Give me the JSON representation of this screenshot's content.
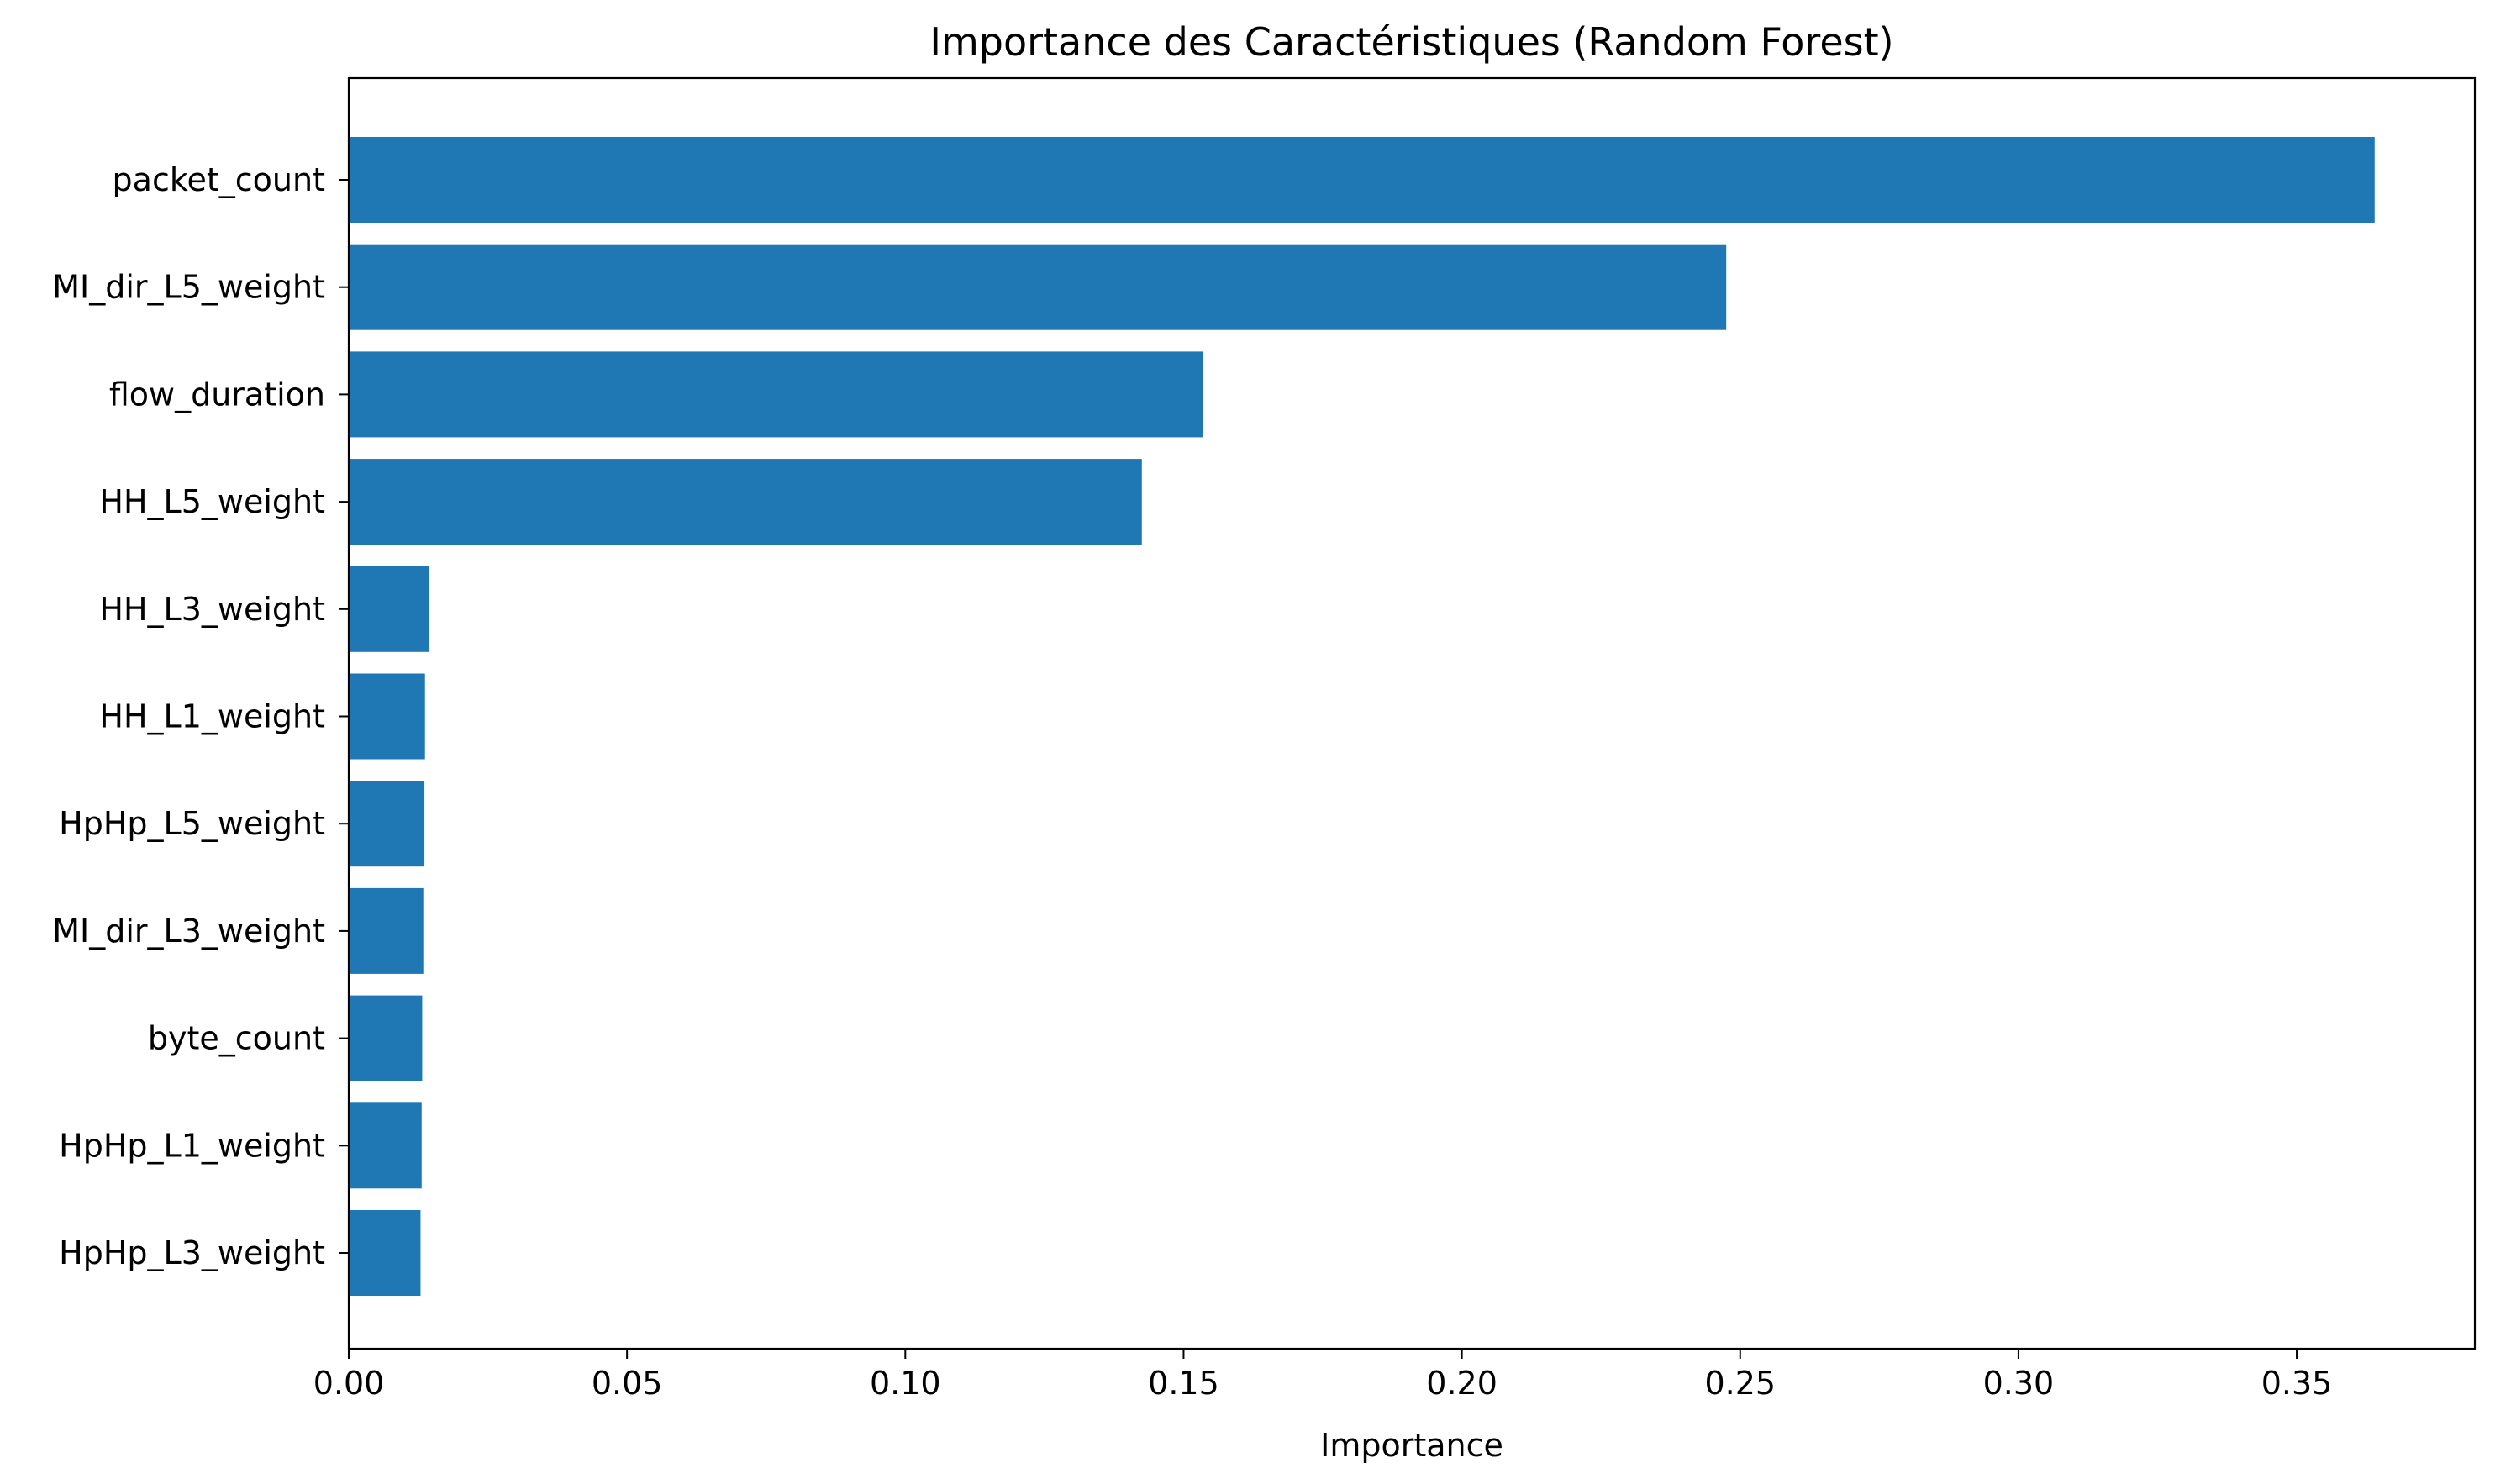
{
  "chart_data": {
    "type": "bar",
    "orientation": "horizontal",
    "title": "Importance des Caractéristiques (Random Forest)",
    "xlabel": "Importance",
    "ylabel": "",
    "categories": [
      "packet_count",
      "MI_dir_L5_weight",
      "flow_duration",
      "HH_L5_weight",
      "HH_L3_weight",
      "HH_L1_weight",
      "HpHp_L5_weight",
      "MI_dir_L3_weight",
      "byte_count",
      "HpHp_L1_weight",
      "HpHp_L3_weight"
    ],
    "values": [
      0.364,
      0.2475,
      0.1535,
      0.1425,
      0.0145,
      0.0137,
      0.0136,
      0.0134,
      0.0132,
      0.0131,
      0.0129
    ],
    "xlim": [
      0,
      0.382
    ],
    "xticks": [
      0.0,
      0.05,
      0.1,
      0.15,
      0.2,
      0.25,
      0.3,
      0.35
    ],
    "xtick_labels": [
      "0.00",
      "0.05",
      "0.10",
      "0.15",
      "0.20",
      "0.25",
      "0.30",
      "0.35"
    ],
    "bar_color": "#1f77b4",
    "grid": false,
    "legend": "none"
  }
}
